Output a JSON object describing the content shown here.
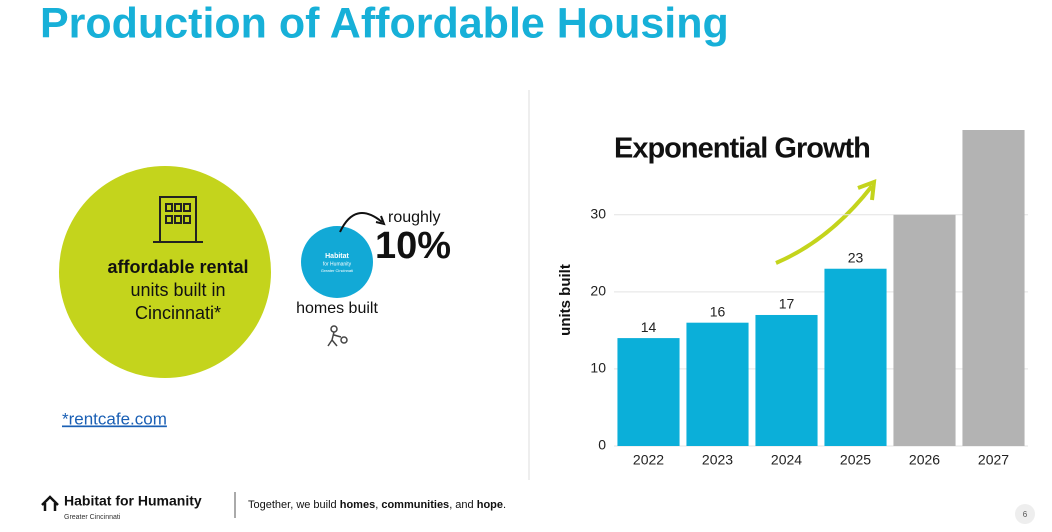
{
  "page": {
    "title": "Production of Affordable Housing",
    "circle": {
      "bold_line": "affordable rental",
      "line2": "units built in",
      "line3": "Cincinnati*"
    },
    "callout": {
      "prefix": "roughly",
      "percent": "10%",
      "caption": "homes built",
      "logo_lines": [
        "Habitat",
        "for Humanity",
        "Greater Cincinnati"
      ]
    },
    "source_link": "*rentcafe.com",
    "footer": {
      "org": "Habitat for Humanity",
      "org_sub": "Greater Cincinnati",
      "tagline": [
        {
          "text": "Together, we build ",
          "bold": false
        },
        {
          "text": "homes",
          "bold": true
        },
        {
          "text": ", ",
          "bold": false
        },
        {
          "text": "communities",
          "bold": true
        },
        {
          "text": ", and ",
          "bold": false
        },
        {
          "text": "hope",
          "bold": true
        },
        {
          "text": ".",
          "bold": false
        }
      ],
      "page_number": "6"
    }
  },
  "chart_data": {
    "type": "bar",
    "title": "Exponential Growth",
    "y_label": "units built",
    "categories": [
      "2022",
      "2023",
      "2024",
      "2025",
      "2026",
      "2027"
    ],
    "values": [
      14,
      16,
      17,
      23,
      30,
      41
    ],
    "colors": [
      "#0bafd9",
      "#0bafd9",
      "#0bafd9",
      "#0bafd9",
      "#b3b3b3",
      "#b3b3b3"
    ],
    "show_value_labels": [
      true,
      true,
      true,
      true,
      false,
      false
    ],
    "ylim": [
      0,
      41
    ],
    "yticks": [
      0,
      10,
      20,
      30
    ],
    "grid": true
  }
}
